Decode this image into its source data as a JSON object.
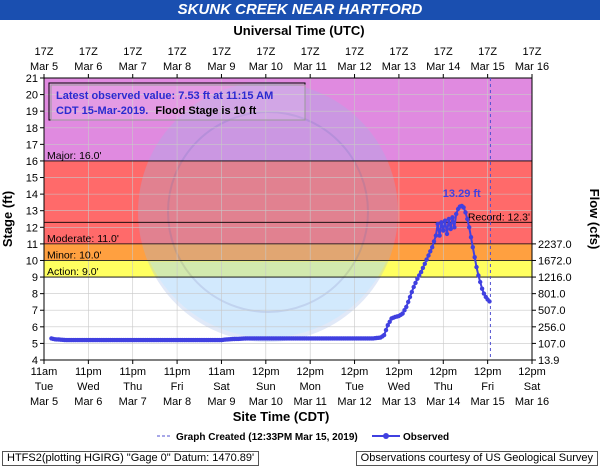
{
  "title": "SKUNK CREEK NEAR HARTFORD",
  "top_axis_title": "Universal Time (UTC)",
  "bottom_axis_title": "Site Time (CDT)",
  "left_axis_title": "Stage (ft)",
  "right_axis_title": "Flow (cfs)",
  "info_box": {
    "line1": "Latest observed value: 7.53 ft at 11:15 AM",
    "line2": "CDT 15-Mar-2019.",
    "line2_bold": "Flood Stage is 10 ft"
  },
  "legend": {
    "graph_created": "Graph Created (12:33PM Mar 15, 2019)",
    "observed": "Observed"
  },
  "footer": {
    "left": "HTFS2(plotting HGIRG) \"Gage 0\" Datum: 1470.89'",
    "right": "Observations courtesy of US Geological Survey"
  },
  "colors": {
    "record_band": "#e08ae0",
    "major_band": "#ff6a6a",
    "moderate_band": "#ff8f6a",
    "minor_band": "#ffd040",
    "action_band": "#ffff80",
    "normal_band": "#ffffff",
    "series": "#4040e0",
    "title_bar": "#1a4fb0"
  },
  "chart_data": {
    "type": "line",
    "ylim": [
      4,
      21
    ],
    "y_ticks": [
      4,
      5,
      6,
      7,
      8,
      9,
      10,
      11,
      12,
      13,
      14,
      15,
      16,
      17,
      18,
      19,
      20,
      21
    ],
    "y_tick_labels": [
      "4",
      "5",
      "6",
      "7",
      "8",
      "9",
      "10",
      "11",
      "12",
      "13",
      "14",
      "15",
      "16",
      "17",
      "18",
      "19",
      "20",
      "21"
    ],
    "xlim": [
      0,
      264
    ],
    "x_ticks": [
      0,
      24,
      48,
      72,
      96,
      120,
      144,
      168,
      192,
      216,
      240,
      264
    ],
    "bottom_tick_labels": [
      [
        "11am",
        "Tue",
        "Mar 5"
      ],
      [
        "11pm",
        "Wed",
        "Mar 6"
      ],
      [
        "11pm",
        "Thu",
        "Mar 7"
      ],
      [
        "11pm",
        "Fri",
        "Mar 8"
      ],
      [
        "11am",
        "Sat",
        "Mar 9"
      ],
      [
        "12pm",
        "Sun",
        "Mar 10"
      ],
      [
        "12pm",
        "Mon",
        "Mar 11"
      ],
      [
        "12pm",
        "Tue",
        "Mar 12"
      ],
      [
        "12pm",
        "Wed",
        "Mar 13"
      ],
      [
        "12pm",
        "Thu",
        "Mar 14"
      ],
      [
        "12pm",
        "Fri",
        "Mar 15"
      ],
      [
        "12pm",
        "Sat",
        "Mar 16"
      ]
    ],
    "top_tick_labels": [
      [
        "17Z",
        "Mar 5"
      ],
      [
        "17Z",
        "Mar 6"
      ],
      [
        "17Z",
        "Mar 7"
      ],
      [
        "17Z",
        "Mar 8"
      ],
      [
        "17Z",
        "Mar 9"
      ],
      [
        "17Z",
        "Mar 10"
      ],
      [
        "17Z",
        "Mar 11"
      ],
      [
        "17Z",
        "Mar 12"
      ],
      [
        "17Z",
        "Mar 13"
      ],
      [
        "17Z",
        "Mar 14"
      ],
      [
        "17Z",
        "Mar 15"
      ],
      [
        "17Z",
        "Mar 16"
      ]
    ],
    "flow_ticks": [
      {
        "stage": 4,
        "label": "13.9"
      },
      {
        "stage": 5,
        "label": "107.0"
      },
      {
        "stage": 6,
        "label": "256.0"
      },
      {
        "stage": 7,
        "label": "507.0"
      },
      {
        "stage": 8,
        "label": "801.0"
      },
      {
        "stage": 9,
        "label": "1216.0"
      },
      {
        "stage": 10,
        "label": "1672.0"
      },
      {
        "stage": 11,
        "label": "2237.0"
      }
    ],
    "bands": [
      {
        "name": "record",
        "from": 16,
        "to": 21,
        "color": "#e08ae0"
      },
      {
        "name": "major",
        "from": 11,
        "to": 16,
        "color": "#ff6a6a"
      },
      {
        "name": "minor",
        "from": 10,
        "to": 11,
        "color": "#ffa040"
      },
      {
        "name": "action",
        "from": 9,
        "to": 10,
        "color": "#ffff60"
      },
      {
        "name": "normal",
        "from": 4,
        "to": 9,
        "color": "#ffffff"
      }
    ],
    "threshold_lines": [
      {
        "label": "Major: 16.0'",
        "value": 16.0
      },
      {
        "label": "Record: 12.3'",
        "value": 12.3
      },
      {
        "label": "Moderate: 11.0'",
        "value": 11.0
      },
      {
        "label": "Minor: 10.0'",
        "value": 10.0
      },
      {
        "label": "Action: 9.0'",
        "value": 9.0
      }
    ],
    "graph_created_x": 241.5,
    "peak_label": "13.29 ft",
    "peak": {
      "x": 226,
      "y": 13.29
    },
    "series": [
      {
        "name": "Observed",
        "points": [
          [
            4,
            5.3
          ],
          [
            6,
            5.25
          ],
          [
            12,
            5.2
          ],
          [
            24,
            5.2
          ],
          [
            48,
            5.2
          ],
          [
            72,
            5.2
          ],
          [
            96,
            5.2
          ],
          [
            97,
            5.22
          ],
          [
            100,
            5.25
          ],
          [
            110,
            5.3
          ],
          [
            120,
            5.3
          ],
          [
            144,
            5.3
          ],
          [
            168,
            5.3
          ],
          [
            178,
            5.3
          ],
          [
            182,
            5.35
          ],
          [
            184,
            5.5
          ],
          [
            186,
            6.1
          ],
          [
            188,
            6.5
          ],
          [
            190,
            6.6
          ],
          [
            192,
            6.65
          ],
          [
            194,
            6.8
          ],
          [
            196,
            7.2
          ],
          [
            198,
            7.8
          ],
          [
            200,
            8.4
          ],
          [
            202,
            8.9
          ],
          [
            204,
            9.3
          ],
          [
            206,
            9.8
          ],
          [
            208,
            10.3
          ],
          [
            210,
            10.8
          ],
          [
            212,
            11.5
          ],
          [
            213,
            12.2
          ],
          [
            214,
            11.5
          ],
          [
            215,
            12.3
          ],
          [
            216,
            11.8
          ],
          [
            217,
            12.4
          ],
          [
            218,
            11.6
          ],
          [
            219,
            12.5
          ],
          [
            220,
            11.9
          ],
          [
            221,
            12.6
          ],
          [
            222,
            12.0
          ],
          [
            223,
            12.8
          ],
          [
            224,
            13.1
          ],
          [
            225,
            13.25
          ],
          [
            226,
            13.29
          ],
          [
            227,
            13.2
          ],
          [
            228,
            12.9
          ],
          [
            229,
            12.5
          ],
          [
            230,
            12.0
          ],
          [
            231,
            11.4
          ],
          [
            232,
            10.8
          ],
          [
            233,
            10.2
          ],
          [
            234,
            9.6
          ],
          [
            235,
            9.1
          ],
          [
            236,
            8.7
          ],
          [
            237,
            8.3
          ],
          [
            238,
            8.0
          ],
          [
            239,
            7.8
          ],
          [
            240,
            7.65
          ],
          [
            241,
            7.53
          ]
        ]
      }
    ]
  }
}
